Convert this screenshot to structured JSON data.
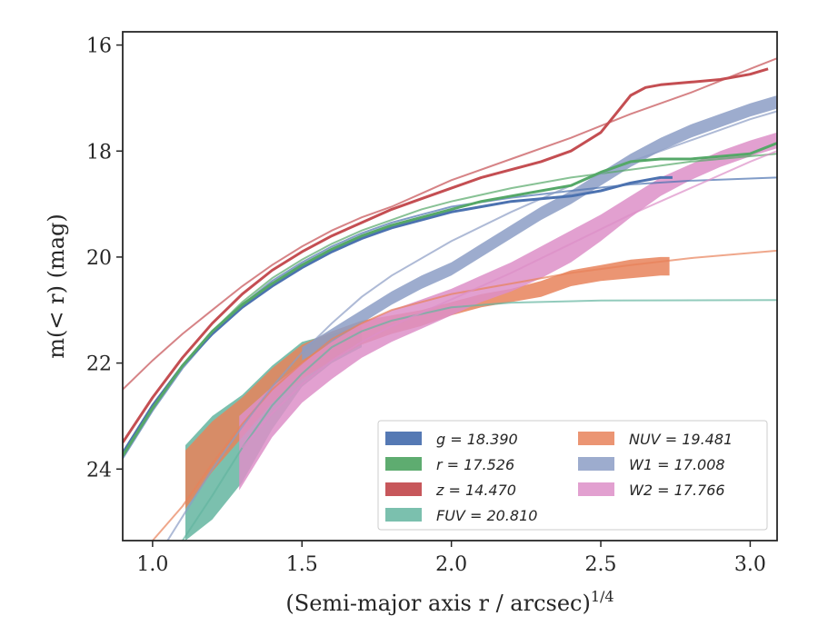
{
  "chart_data": {
    "type": "line",
    "xlabel": "(Semi-major axis r / arcsec)",
    "xlabel_exponent": "1/4",
    "ylabel": "m(< r) (mag)",
    "xlim": [
      0.9,
      3.09
    ],
    "ylim": [
      25.35,
      15.75
    ],
    "y_inverted": true,
    "x_ticks": [
      "1.0",
      "1.5",
      "2.0",
      "2.5",
      "3.0"
    ],
    "y_ticks": [
      "16",
      "18",
      "20",
      "22",
      "24"
    ],
    "x_tick_values": [
      1.0,
      1.5,
      2.0,
      2.5,
      3.0
    ],
    "y_tick_values": [
      16,
      18,
      20,
      22,
      24
    ],
    "grid": false,
    "legend_position": "lower-right",
    "legend_columns": 2,
    "series": [
      {
        "name": "g",
        "legend": "g = 18.390",
        "color": "#4c72b0",
        "kind": "line",
        "observed": [
          [
            0.9,
            23.7
          ],
          [
            1.0,
            22.8
          ],
          [
            1.1,
            22.05
          ],
          [
            1.2,
            21.45
          ],
          [
            1.3,
            20.95
          ],
          [
            1.4,
            20.55
          ],
          [
            1.5,
            20.2
          ],
          [
            1.6,
            19.9
          ],
          [
            1.7,
            19.65
          ],
          [
            1.8,
            19.45
          ],
          [
            1.9,
            19.3
          ],
          [
            2.0,
            19.15
          ],
          [
            2.1,
            19.05
          ],
          [
            2.2,
            18.95
          ],
          [
            2.3,
            18.9
          ],
          [
            2.4,
            18.85
          ],
          [
            2.5,
            18.75
          ],
          [
            2.6,
            18.6
          ],
          [
            2.7,
            18.5
          ],
          [
            2.74,
            18.5
          ]
        ],
        "model": [
          [
            0.9,
            23.8
          ],
          [
            1.0,
            22.9
          ],
          [
            1.1,
            22.1
          ],
          [
            1.2,
            21.45
          ],
          [
            1.3,
            20.9
          ],
          [
            1.4,
            20.45
          ],
          [
            1.5,
            20.1
          ],
          [
            1.6,
            19.8
          ],
          [
            1.7,
            19.55
          ],
          [
            1.8,
            19.35
          ],
          [
            1.9,
            19.2
          ],
          [
            2.0,
            19.05
          ],
          [
            2.2,
            18.88
          ],
          [
            2.4,
            18.75
          ],
          [
            2.6,
            18.63
          ],
          [
            2.8,
            18.56
          ],
          [
            3.09,
            18.5
          ]
        ]
      },
      {
        "name": "r",
        "legend": "r = 17.526",
        "color": "#55a868",
        "kind": "line",
        "observed": [
          [
            0.9,
            23.75
          ],
          [
            1.0,
            22.85
          ],
          [
            1.1,
            22.05
          ],
          [
            1.2,
            21.4
          ],
          [
            1.3,
            20.9
          ],
          [
            1.4,
            20.5
          ],
          [
            1.5,
            20.15
          ],
          [
            1.6,
            19.85
          ],
          [
            1.7,
            19.6
          ],
          [
            1.8,
            19.4
          ],
          [
            1.9,
            19.25
          ],
          [
            2.0,
            19.1
          ],
          [
            2.1,
            18.95
          ],
          [
            2.2,
            18.85
          ],
          [
            2.3,
            18.75
          ],
          [
            2.4,
            18.65
          ],
          [
            2.5,
            18.4
          ],
          [
            2.6,
            18.2
          ],
          [
            2.7,
            18.15
          ],
          [
            2.8,
            18.15
          ],
          [
            2.9,
            18.1
          ],
          [
            3.0,
            18.05
          ],
          [
            3.09,
            17.85
          ]
        ],
        "model": [
          [
            0.9,
            23.7
          ],
          [
            1.0,
            22.85
          ],
          [
            1.1,
            22.05
          ],
          [
            1.2,
            21.4
          ],
          [
            1.3,
            20.85
          ],
          [
            1.4,
            20.4
          ],
          [
            1.5,
            20.05
          ],
          [
            1.6,
            19.75
          ],
          [
            1.7,
            19.5
          ],
          [
            1.8,
            19.3
          ],
          [
            1.9,
            19.1
          ],
          [
            2.0,
            18.95
          ],
          [
            2.2,
            18.7
          ],
          [
            2.4,
            18.5
          ],
          [
            2.6,
            18.35
          ],
          [
            2.8,
            18.2
          ],
          [
            3.09,
            18.05
          ]
        ]
      },
      {
        "name": "z",
        "legend": "z = 14.470",
        "color": "#c44e52",
        "kind": "line",
        "observed": [
          [
            0.9,
            23.5
          ],
          [
            1.0,
            22.65
          ],
          [
            1.1,
            21.9
          ],
          [
            1.2,
            21.25
          ],
          [
            1.3,
            20.7
          ],
          [
            1.4,
            20.25
          ],
          [
            1.5,
            19.9
          ],
          [
            1.6,
            19.6
          ],
          [
            1.7,
            19.35
          ],
          [
            1.8,
            19.1
          ],
          [
            1.9,
            18.9
          ],
          [
            2.0,
            18.7
          ],
          [
            2.1,
            18.5
          ],
          [
            2.2,
            18.35
          ],
          [
            2.3,
            18.2
          ],
          [
            2.4,
            18.0
          ],
          [
            2.5,
            17.65
          ],
          [
            2.55,
            17.3
          ],
          [
            2.6,
            16.95
          ],
          [
            2.65,
            16.8
          ],
          [
            2.7,
            16.75
          ],
          [
            2.8,
            16.7
          ],
          [
            2.9,
            16.65
          ],
          [
            3.0,
            16.55
          ],
          [
            3.06,
            16.45
          ]
        ],
        "model": [
          [
            0.9,
            22.5
          ],
          [
            1.0,
            21.95
          ],
          [
            1.1,
            21.45
          ],
          [
            1.2,
            21.0
          ],
          [
            1.3,
            20.55
          ],
          [
            1.4,
            20.15
          ],
          [
            1.5,
            19.8
          ],
          [
            1.6,
            19.5
          ],
          [
            1.7,
            19.25
          ],
          [
            1.8,
            19.05
          ],
          [
            1.9,
            18.8
          ],
          [
            2.0,
            18.55
          ],
          [
            2.2,
            18.15
          ],
          [
            2.4,
            17.75
          ],
          [
            2.6,
            17.3
          ],
          [
            2.8,
            16.9
          ],
          [
            3.0,
            16.45
          ],
          [
            3.09,
            16.25
          ]
        ]
      },
      {
        "name": "FUV",
        "legend": "FUV = 20.810",
        "color": "#64b5a0",
        "kind": "band",
        "band": [
          [
            1.11,
            23.55,
            25.35
          ],
          [
            1.2,
            23.0,
            24.95
          ],
          [
            1.3,
            22.6,
            24.25
          ],
          [
            1.4,
            22.05,
            23.25
          ],
          [
            1.5,
            21.6,
            22.45
          ],
          [
            1.6,
            21.45,
            22.0
          ],
          [
            1.7,
            21.3,
            21.7
          ]
        ],
        "model": [
          [
            1.1,
            25.35
          ],
          [
            1.2,
            24.5
          ],
          [
            1.3,
            23.6
          ],
          [
            1.4,
            22.8
          ],
          [
            1.5,
            22.2
          ],
          [
            1.6,
            21.7
          ],
          [
            1.7,
            21.4
          ],
          [
            1.8,
            21.2
          ],
          [
            2.0,
            20.95
          ],
          [
            2.2,
            20.86
          ],
          [
            2.5,
            20.82
          ],
          [
            3.09,
            20.81
          ]
        ]
      },
      {
        "name": "NUV",
        "legend": "NUV = 19.481",
        "color": "#e8825a",
        "kind": "band",
        "band": [
          [
            1.11,
            23.65,
            24.75
          ],
          [
            1.2,
            23.1,
            24.05
          ],
          [
            1.3,
            22.65,
            23.4
          ],
          [
            1.4,
            22.1,
            22.75
          ],
          [
            1.5,
            21.65,
            22.3
          ],
          [
            1.6,
            21.4,
            21.95
          ],
          [
            1.7,
            21.2,
            21.65
          ],
          [
            1.8,
            21.1,
            21.45
          ],
          [
            1.9,
            21.0,
            21.3
          ],
          [
            2.0,
            20.85,
            21.1
          ],
          [
            2.1,
            20.7,
            20.95
          ],
          [
            2.2,
            20.6,
            20.85
          ],
          [
            2.3,
            20.45,
            20.75
          ],
          [
            2.4,
            20.25,
            20.55
          ],
          [
            2.5,
            20.15,
            20.45
          ],
          [
            2.6,
            20.05,
            20.4
          ],
          [
            2.7,
            20.0,
            20.35
          ],
          [
            2.73,
            20.0,
            20.35
          ]
        ],
        "model": [
          [
            1.0,
            25.35
          ],
          [
            1.1,
            24.7
          ],
          [
            1.2,
            23.9
          ],
          [
            1.3,
            23.15
          ],
          [
            1.4,
            22.5
          ],
          [
            1.5,
            22.0
          ],
          [
            1.6,
            21.55
          ],
          [
            1.7,
            21.25
          ],
          [
            1.8,
            21.0
          ],
          [
            2.0,
            20.7
          ],
          [
            2.2,
            20.5
          ],
          [
            2.4,
            20.3
          ],
          [
            2.6,
            20.15
          ],
          [
            2.8,
            20.02
          ],
          [
            3.09,
            19.88
          ]
        ]
      },
      {
        "name": "W1",
        "legend": "W1 = 17.008",
        "color": "#8c9dc5",
        "kind": "band",
        "band": [
          [
            1.5,
            21.7,
            21.95
          ],
          [
            1.6,
            21.35,
            21.6
          ],
          [
            1.7,
            21.0,
            21.25
          ],
          [
            1.8,
            20.65,
            20.9
          ],
          [
            1.9,
            20.35,
            20.6
          ],
          [
            2.0,
            20.1,
            20.35
          ],
          [
            2.1,
            19.75,
            20.0
          ],
          [
            2.2,
            19.4,
            19.65
          ],
          [
            2.3,
            19.05,
            19.3
          ],
          [
            2.4,
            18.75,
            19.0
          ],
          [
            2.5,
            18.4,
            18.65
          ],
          [
            2.6,
            18.05,
            18.3
          ],
          [
            2.7,
            17.75,
            18.0
          ],
          [
            2.8,
            17.5,
            17.75
          ],
          [
            2.9,
            17.3,
            17.55
          ],
          [
            3.0,
            17.1,
            17.35
          ],
          [
            3.09,
            16.95,
            17.2
          ]
        ],
        "model": [
          [
            1.05,
            25.35
          ],
          [
            1.1,
            24.9
          ],
          [
            1.2,
            24.0
          ],
          [
            1.3,
            23.2
          ],
          [
            1.4,
            22.45
          ],
          [
            1.5,
            21.8
          ],
          [
            1.6,
            21.25
          ],
          [
            1.7,
            20.75
          ],
          [
            1.8,
            20.35
          ],
          [
            2.0,
            19.7
          ],
          [
            2.2,
            19.15
          ],
          [
            2.4,
            18.65
          ],
          [
            2.6,
            18.2
          ],
          [
            2.8,
            17.8
          ],
          [
            3.0,
            17.4
          ],
          [
            3.09,
            17.25
          ]
        ]
      },
      {
        "name": "W2",
        "legend": "W2 = 17.766",
        "color": "#dd8fc8",
        "kind": "band",
        "band": [
          [
            1.29,
            23.0,
            24.4
          ],
          [
            1.4,
            22.45,
            23.4
          ],
          [
            1.5,
            22.0,
            22.75
          ],
          [
            1.6,
            21.6,
            22.3
          ],
          [
            1.7,
            21.25,
            21.9
          ],
          [
            1.8,
            21.0,
            21.6
          ],
          [
            1.9,
            20.8,
            21.35
          ],
          [
            2.0,
            20.6,
            21.1
          ],
          [
            2.1,
            20.35,
            20.85
          ],
          [
            2.2,
            20.1,
            20.65
          ],
          [
            2.3,
            19.8,
            20.4
          ],
          [
            2.4,
            19.5,
            20.1
          ],
          [
            2.5,
            19.2,
            19.7
          ],
          [
            2.6,
            18.85,
            19.25
          ],
          [
            2.7,
            18.5,
            18.85
          ],
          [
            2.8,
            18.25,
            18.55
          ],
          [
            2.9,
            18.0,
            18.3
          ],
          [
            3.0,
            17.8,
            18.1
          ],
          [
            3.09,
            17.65,
            17.95
          ]
        ],
        "model": [
          [
            1.3,
            23.6
          ],
          [
            1.4,
            22.95
          ],
          [
            1.5,
            22.4
          ],
          [
            1.6,
            21.95
          ],
          [
            1.7,
            21.6
          ],
          [
            1.8,
            21.3
          ],
          [
            2.0,
            20.8
          ],
          [
            2.2,
            20.3
          ],
          [
            2.4,
            19.75
          ],
          [
            2.6,
            19.2
          ],
          [
            2.8,
            18.7
          ],
          [
            3.0,
            18.2
          ],
          [
            3.09,
            18.0
          ]
        ]
      }
    ]
  }
}
